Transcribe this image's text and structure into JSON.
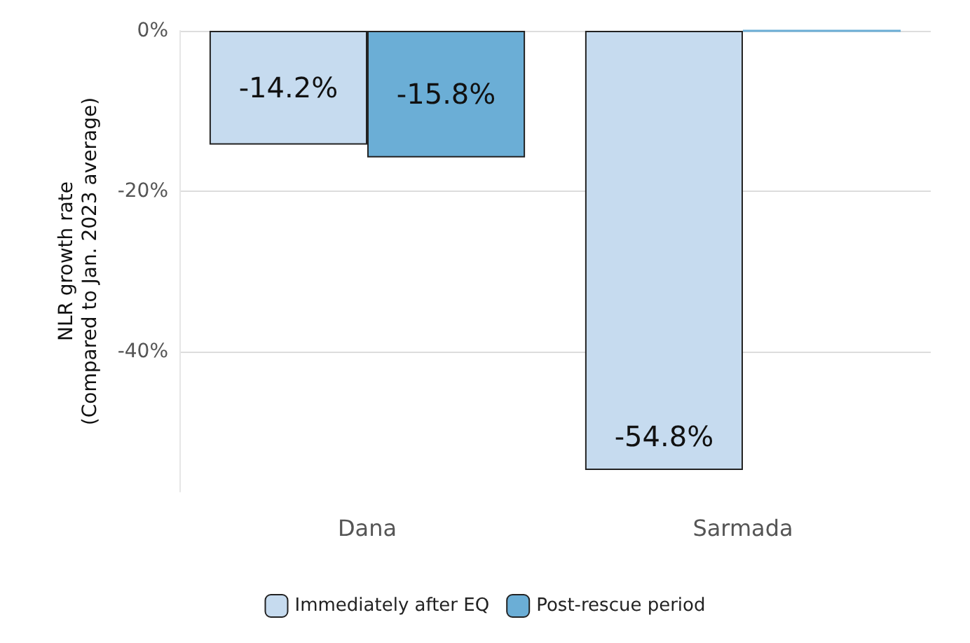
{
  "chart_data": {
    "type": "bar",
    "ylabel": "NLR growth rate\n(Compared to Jan. 2023 average)",
    "categories": [
      "Dana",
      "Sarmada"
    ],
    "series": [
      {
        "name": "Immediately after EQ",
        "color": "#c6dbef",
        "values": [
          -14.2,
          -54.8
        ],
        "value_labels": [
          "-14.2%",
          "-54.8%"
        ]
      },
      {
        "name": "Post-rescue period",
        "color": "#6baed6",
        "values": [
          -15.8,
          0
        ],
        "value_labels": [
          "-15.8%",
          null
        ]
      }
    ],
    "ylim": [
      -57.5,
      0
    ],
    "yticks": [
      {
        "value": -40,
        "label": "-40%"
      },
      {
        "value": -20,
        "label": "-20%"
      },
      {
        "value": 0,
        "label": "0%"
      }
    ],
    "grid": "y",
    "legend": "bottom"
  }
}
